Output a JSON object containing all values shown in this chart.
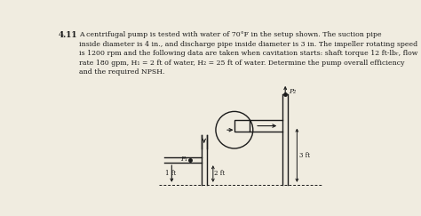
{
  "title_num": "4.11",
  "bg_color": "#f0ece0",
  "text_color": "#1a1a1a",
  "line_color": "#1a1a1a",
  "label_P1": "P₁",
  "label_P2": "P₂",
  "label_1ft": "1 ft",
  "label_2ft": "2 ft",
  "label_3ft": "3 ft",
  "text_lines": [
    "A centrifugal pump is tested with water of 70°F in the setup shown. The suction pipe",
    "inside diameter is 4 in., and discharge pipe inside diameter is 3 in. The impeller rotating speed",
    "is 1200 rpm and the following data are taken when cavitation starts: shaft torque 12 ft-lbᵣ, flow",
    "rate 180 gpm, H₁ = 2 ft of water, H₂ = 25 ft of water. Determine the pump overall efficiency",
    "and the required NPSH."
  ]
}
